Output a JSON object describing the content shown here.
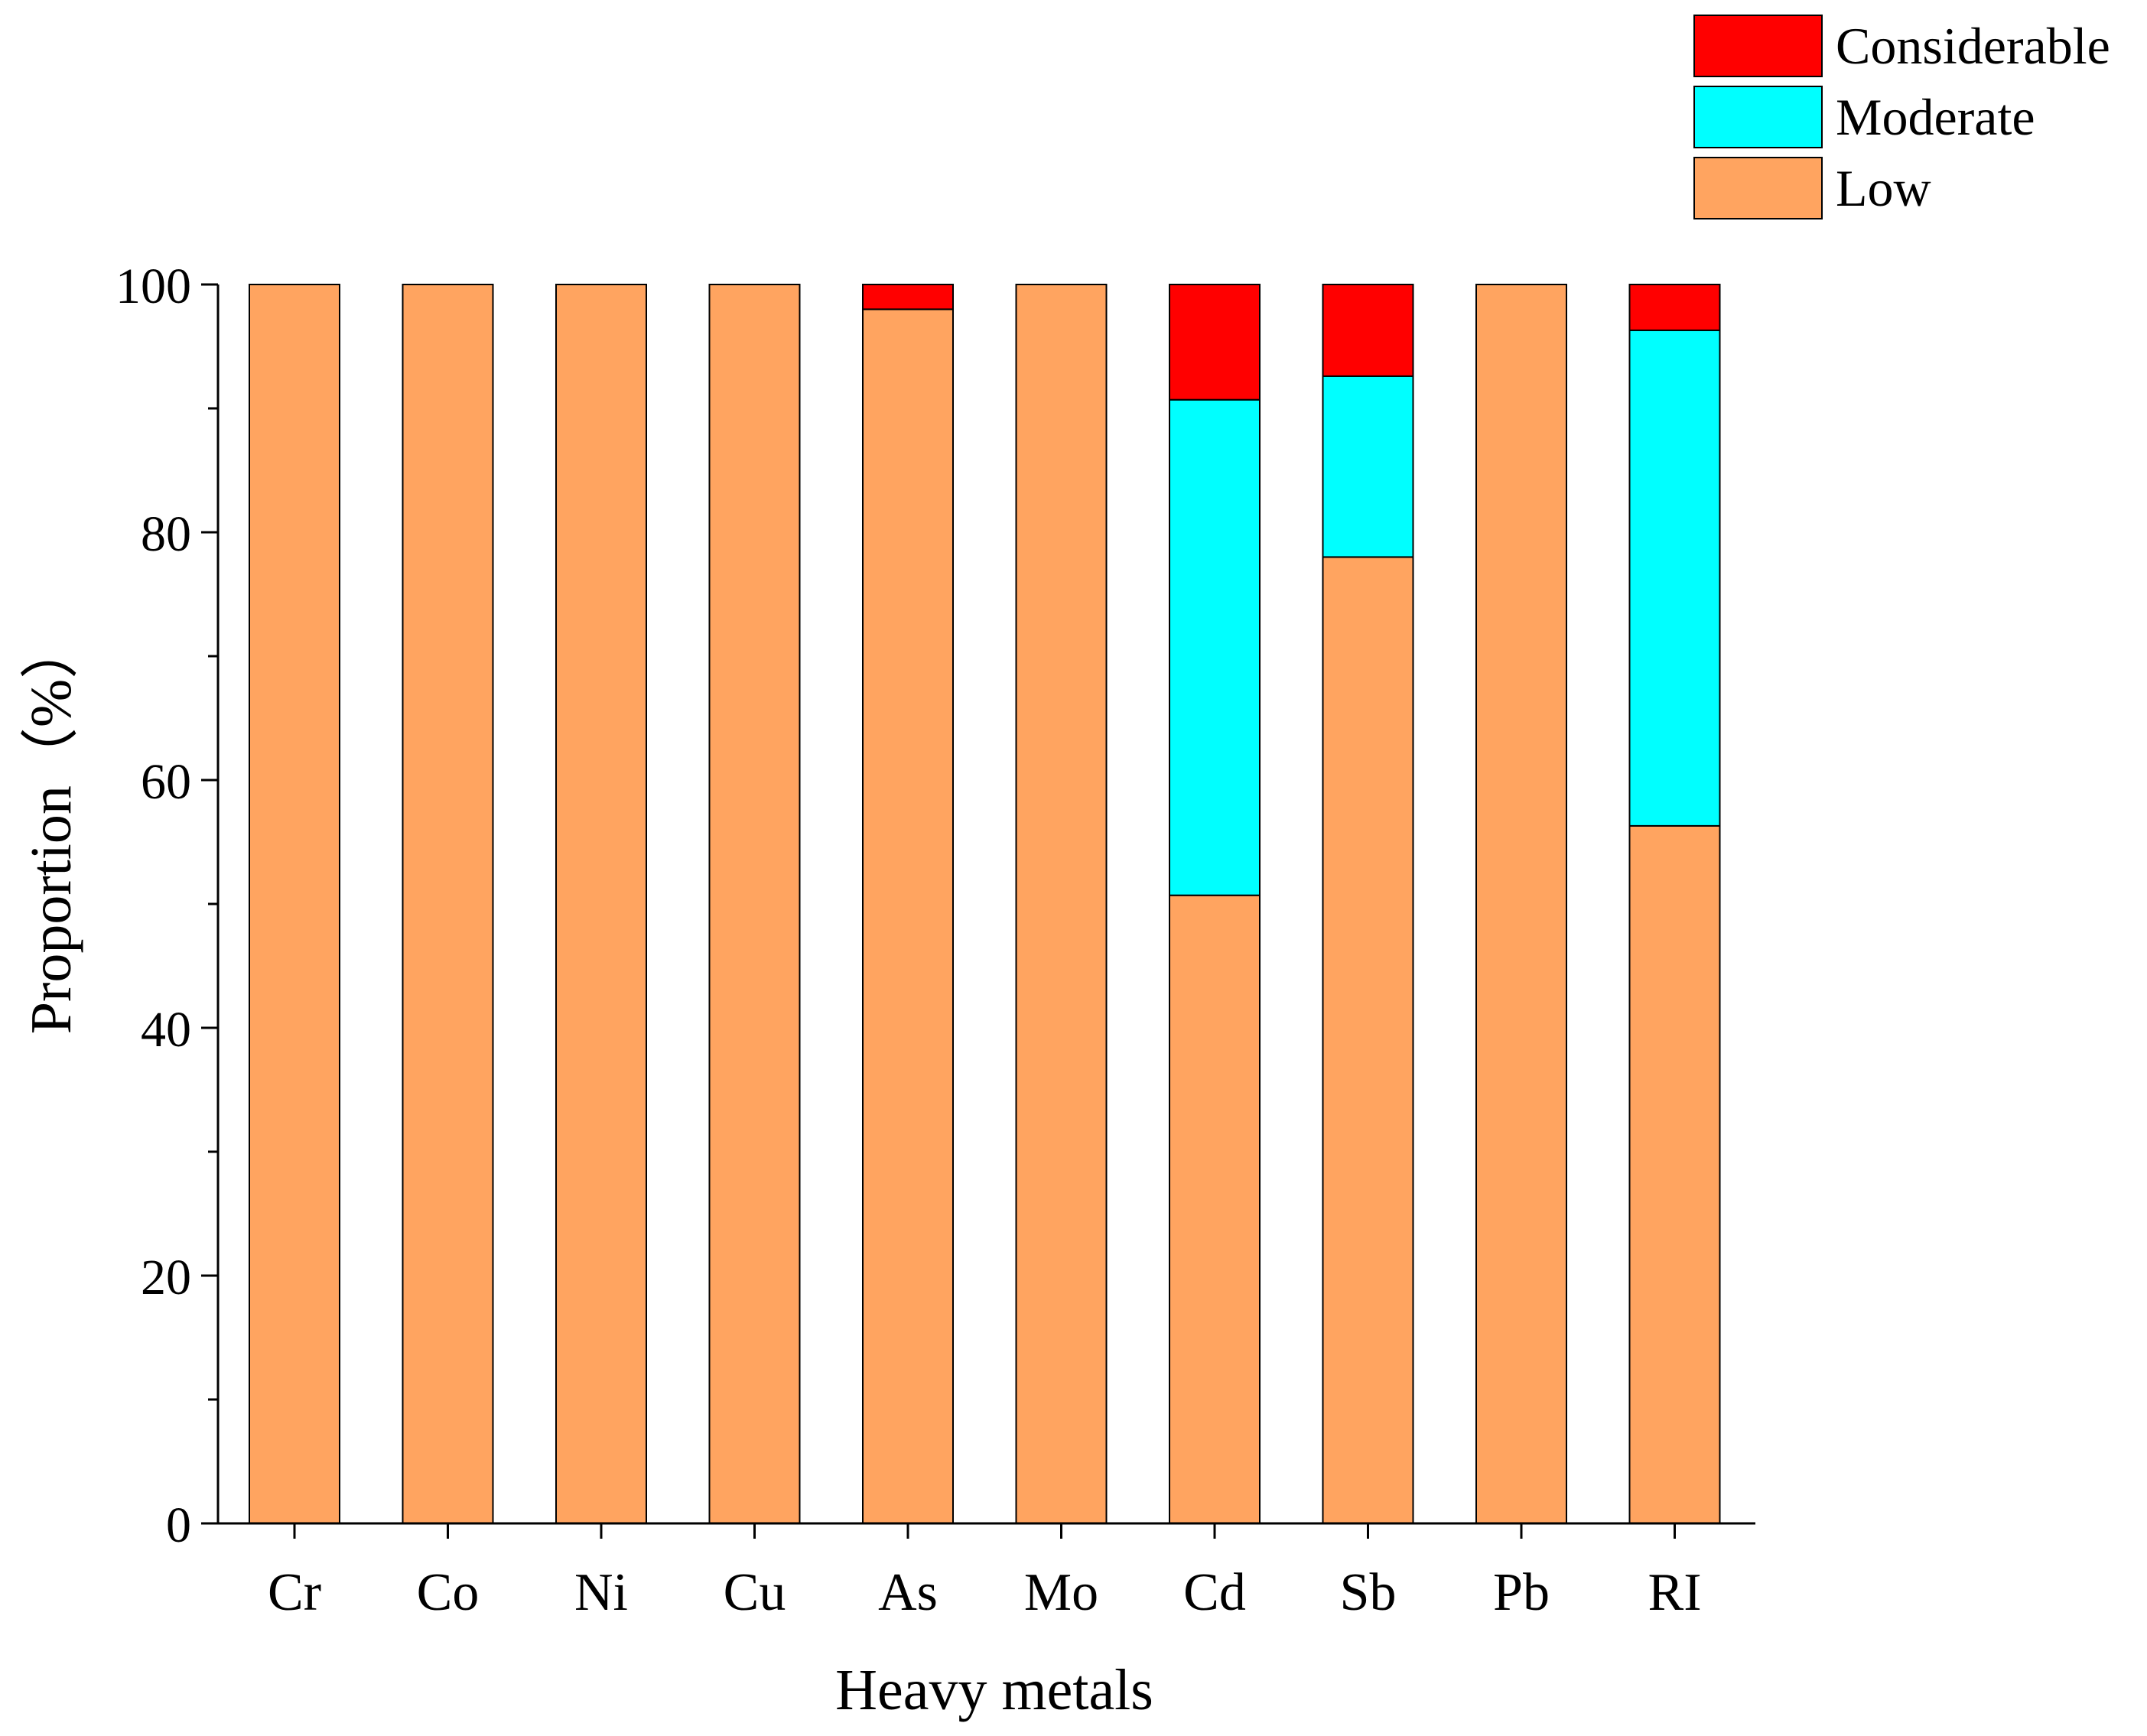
{
  "chart_data": {
    "type": "bar",
    "stacked": true,
    "title": "",
    "xlabel": "Heavy metals",
    "ylabel": "Proportion（%）",
    "ylim": [
      0,
      100
    ],
    "yticks": [
      0,
      20,
      40,
      60,
      80,
      100
    ],
    "grid": false,
    "legend_position": "top-right",
    "categories": [
      "Cr",
      "Co",
      "Ni",
      "Cu",
      "As",
      "Mo",
      "Cd",
      "Sb",
      "Pb",
      "RI"
    ],
    "series": [
      {
        "name": "Low",
        "color": "#FFA460",
        "values": [
          100,
          100,
          100,
          100,
          98,
          100,
          50.7,
          78,
          100,
          56.3
        ]
      },
      {
        "name": "Moderate",
        "color": "#00FFFF",
        "values": [
          0,
          0,
          0,
          0,
          0,
          0,
          40,
          14.6,
          0,
          40
        ]
      },
      {
        "name": "Considerable",
        "color": "#FF0000",
        "values": [
          0,
          0,
          0,
          0,
          2,
          0,
          9.3,
          7.4,
          0,
          3.7
        ]
      }
    ]
  }
}
